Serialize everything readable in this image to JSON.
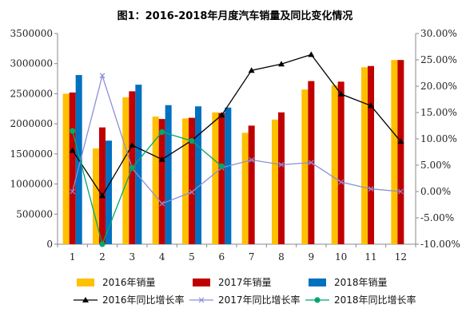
{
  "chart_data": {
    "type": "bar",
    "title": "图1：2016-2018年月度汽车销量及同比变化情况",
    "categories": [
      "1",
      "2",
      "3",
      "4",
      "5",
      "6",
      "7",
      "8",
      "9",
      "10",
      "11",
      "12"
    ],
    "ylim": [
      0,
      3500000
    ],
    "y_ticks": [
      "0",
      "500000",
      "1000000",
      "1500000",
      "2000000",
      "2500000",
      "3000000",
      "3500000"
    ],
    "y2lim": [
      -10,
      30
    ],
    "y2_ticks": [
      "-10.00%",
      "-5.00%",
      "0.00%",
      "5.00%",
      "10.00%",
      "15.00%",
      "20.00%",
      "25.00%",
      "30.00%"
    ],
    "grid": false,
    "legend_position": "bottom",
    "series": [
      {
        "name": "2016年销量",
        "kind": "bar",
        "color": "#FFC000",
        "values": [
          2500000,
          1590000,
          2440000,
          2120000,
          2090000,
          2190000,
          1850000,
          2070000,
          2570000,
          2640000,
          2940000,
          3060000
        ]
      },
      {
        "name": "2017年销量",
        "kind": "bar",
        "color": "#C00000",
        "values": [
          2520000,
          1940000,
          2540000,
          2080000,
          2100000,
          2180000,
          1970000,
          2190000,
          2710000,
          2700000,
          2960000,
          3060000
        ]
      },
      {
        "name": "2018年销量",
        "kind": "bar",
        "color": "#0070C0",
        "values": [
          2810000,
          1720000,
          2650000,
          2310000,
          2290000,
          2270000,
          null,
          null,
          null,
          null,
          null,
          null
        ]
      },
      {
        "name": "2016年同比增长率",
        "kind": "line",
        "axis": "right",
        "color": "#000000",
        "marker": "triangle",
        "values": [
          7.8,
          -0.8,
          8.8,
          6.1,
          9.7,
          14.5,
          23.0,
          24.2,
          26.0,
          18.5,
          16.3,
          9.5
        ]
      },
      {
        "name": "2017年同比增长率",
        "kind": "line",
        "axis": "right",
        "color": "#8B8FD8",
        "marker": "x",
        "values": [
          0.0,
          22.0,
          4.4,
          -2.3,
          -0.1,
          4.5,
          6.0,
          5.1,
          5.5,
          1.8,
          0.5,
          0.0
        ]
      },
      {
        "name": "2018年同比增长率",
        "kind": "line",
        "axis": "right",
        "color": "#00A86B",
        "marker": "circle",
        "values": [
          11.5,
          -10.0,
          4.5,
          11.3,
          9.6,
          4.8,
          null,
          null,
          null,
          null,
          null,
          null
        ]
      }
    ]
  }
}
